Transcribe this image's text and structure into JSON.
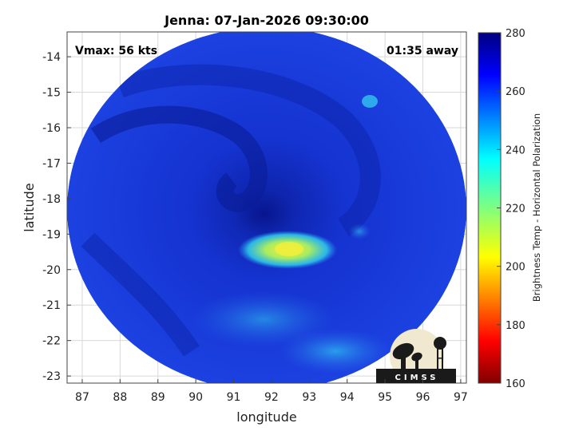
{
  "title": "Jenna: 07-Jan-2026 09:30:00",
  "vmax_label": "Vmax: 56 kts",
  "time_away_label": "01:35 away",
  "xaxis": {
    "label": "longitude",
    "ticks": [
      "87",
      "88",
      "89",
      "90",
      "91",
      "92",
      "93",
      "94",
      "95",
      "96",
      "97"
    ],
    "range": [
      86.6,
      97.15
    ]
  },
  "yaxis": {
    "label": "latitude",
    "ticks": [
      "-14",
      "-15",
      "-16",
      "-17",
      "-18",
      "-19",
      "-20",
      "-21",
      "-22",
      "-23"
    ],
    "range": [
      -23.2,
      -13.3
    ]
  },
  "colorbar": {
    "title": "Brightness Temp - Horizontal Polarization",
    "ticks": [
      "280",
      "260",
      "240",
      "220",
      "200",
      "180",
      "160"
    ],
    "range": [
      160,
      280
    ],
    "colormap": "jet"
  },
  "logo": {
    "text": "CIMSS"
  },
  "swath": {
    "center": [
      91.85,
      -18.25
    ],
    "storm_eye": [
      91.8,
      -18.6
    ],
    "band_center": [
      92.3,
      -19.6
    ]
  },
  "colors": {
    "background_blue": "#1a3fdc",
    "deep_blue": "#0a1f9a",
    "cyan": "#2fd0f0",
    "yellow": "#e8ee40",
    "logo_cream": "#f0e9cf"
  }
}
